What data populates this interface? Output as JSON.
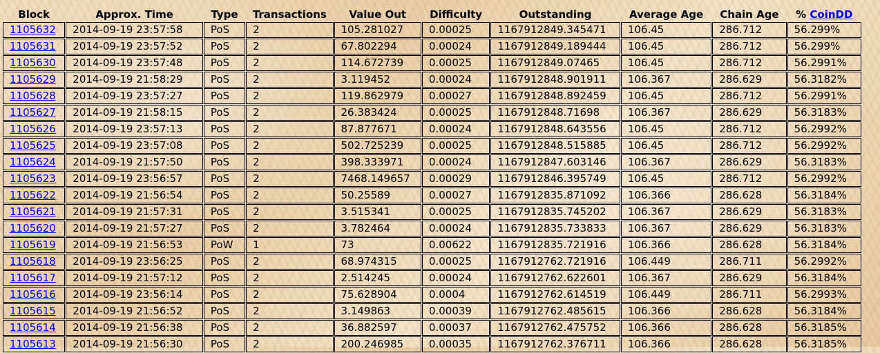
{
  "table": {
    "headers": {
      "block": "Block",
      "time": "Approx. Time",
      "type": "Type",
      "transactions": "Transactions",
      "value_out": "Value Out",
      "difficulty": "Difficulty",
      "outstanding": "Outstanding",
      "average_age": "Average Age",
      "chain_age": "Chain Age",
      "pct_prefix": "% ",
      "pct_link": "CoinDD"
    },
    "rows": [
      {
        "block": "1105632",
        "time": "2014-09-19 23:57:58",
        "type": "PoS",
        "tx": "2",
        "value": "105.281027",
        "difficulty": "0.00025",
        "outstanding": "1167912849.345471",
        "avg_age": "106.45",
        "chain_age": "286.712",
        "pct": "56.299%"
      },
      {
        "block": "1105631",
        "time": "2014-09-19 23:57:52",
        "type": "PoS",
        "tx": "2",
        "value": "67.802294",
        "difficulty": "0.00024",
        "outstanding": "1167912849.189444",
        "avg_age": "106.45",
        "chain_age": "286.712",
        "pct": "56.299%"
      },
      {
        "block": "1105630",
        "time": "2014-09-19 23:57:48",
        "type": "PoS",
        "tx": "2",
        "value": "114.672739",
        "difficulty": "0.00025",
        "outstanding": "1167912849.07465",
        "avg_age": "106.45",
        "chain_age": "286.712",
        "pct": "56.2991%"
      },
      {
        "block": "1105629",
        "time": "2014-09-19 21:58:29",
        "type": "PoS",
        "tx": "2",
        "value": "3.119452",
        "difficulty": "0.00024",
        "outstanding": "1167912848.901911",
        "avg_age": "106.367",
        "chain_age": "286.629",
        "pct": "56.3182%"
      },
      {
        "block": "1105628",
        "time": "2014-09-19 23:57:27",
        "type": "PoS",
        "tx": "2",
        "value": "119.862979",
        "difficulty": "0.00027",
        "outstanding": "1167912848.892459",
        "avg_age": "106.45",
        "chain_age": "286.712",
        "pct": "56.2991%"
      },
      {
        "block": "1105627",
        "time": "2014-09-19 21:58:15",
        "type": "PoS",
        "tx": "2",
        "value": "26.383424",
        "difficulty": "0.00025",
        "outstanding": "1167912848.71698",
        "avg_age": "106.367",
        "chain_age": "286.629",
        "pct": "56.3183%"
      },
      {
        "block": "1105626",
        "time": "2014-09-19 23:57:13",
        "type": "PoS",
        "tx": "2",
        "value": "87.877671",
        "difficulty": "0.00024",
        "outstanding": "1167912848.643556",
        "avg_age": "106.45",
        "chain_age": "286.712",
        "pct": "56.2992%"
      },
      {
        "block": "1105625",
        "time": "2014-09-19 23:57:08",
        "type": "PoS",
        "tx": "2",
        "value": "502.725239",
        "difficulty": "0.00025",
        "outstanding": "1167912848.515885",
        "avg_age": "106.45",
        "chain_age": "286.712",
        "pct": "56.2992%"
      },
      {
        "block": "1105624",
        "time": "2014-09-19 21:57:50",
        "type": "PoS",
        "tx": "2",
        "value": "398.333971",
        "difficulty": "0.00024",
        "outstanding": "1167912847.603146",
        "avg_age": "106.367",
        "chain_age": "286.629",
        "pct": "56.3183%"
      },
      {
        "block": "1105623",
        "time": "2014-09-19 23:56:57",
        "type": "PoS",
        "tx": "2",
        "value": "7468.149657",
        "difficulty": "0.00029",
        "outstanding": "1167912846.395749",
        "avg_age": "106.45",
        "chain_age": "286.712",
        "pct": "56.2992%"
      },
      {
        "block": "1105622",
        "time": "2014-09-19 21:56:54",
        "type": "PoS",
        "tx": "2",
        "value": "50.25589",
        "difficulty": "0.00027",
        "outstanding": "1167912835.871092",
        "avg_age": "106.366",
        "chain_age": "286.628",
        "pct": "56.3184%"
      },
      {
        "block": "1105621",
        "time": "2014-09-19 21:57:31",
        "type": "PoS",
        "tx": "2",
        "value": "3.515341",
        "difficulty": "0.00025",
        "outstanding": "1167912835.745202",
        "avg_age": "106.367",
        "chain_age": "286.629",
        "pct": "56.3183%"
      },
      {
        "block": "1105620",
        "time": "2014-09-19 21:57:27",
        "type": "PoS",
        "tx": "2",
        "value": "3.782464",
        "difficulty": "0.00024",
        "outstanding": "1167912835.733833",
        "avg_age": "106.367",
        "chain_age": "286.629",
        "pct": "56.3183%"
      },
      {
        "block": "1105619",
        "time": "2014-09-19 21:56:53",
        "type": "PoW",
        "tx": "1",
        "value": "73",
        "difficulty": "0.00622",
        "outstanding": "1167912835.721916",
        "avg_age": "106.366",
        "chain_age": "286.628",
        "pct": "56.3184%"
      },
      {
        "block": "1105618",
        "time": "2014-09-19 23:56:25",
        "type": "PoS",
        "tx": "2",
        "value": "68.974315",
        "difficulty": "0.00025",
        "outstanding": "1167912762.721916",
        "avg_age": "106.449",
        "chain_age": "286.711",
        "pct": "56.2992%"
      },
      {
        "block": "1105617",
        "time": "2014-09-19 21:57:12",
        "type": "PoS",
        "tx": "2",
        "value": "2.514245",
        "difficulty": "0.00024",
        "outstanding": "1167912762.622601",
        "avg_age": "106.367",
        "chain_age": "286.629",
        "pct": "56.3184%"
      },
      {
        "block": "1105616",
        "time": "2014-09-19 23:56:14",
        "type": "PoS",
        "tx": "2",
        "value": "75.628904",
        "difficulty": "0.0004",
        "outstanding": "1167912762.614519",
        "avg_age": "106.449",
        "chain_age": "286.711",
        "pct": "56.2993%"
      },
      {
        "block": "1105615",
        "time": "2014-09-19 21:56:52",
        "type": "PoS",
        "tx": "2",
        "value": "3.149863",
        "difficulty": "0.00039",
        "outstanding": "1167912762.485615",
        "avg_age": "106.366",
        "chain_age": "286.628",
        "pct": "56.3184%"
      },
      {
        "block": "1105614",
        "time": "2014-09-19 21:56:38",
        "type": "PoS",
        "tx": "2",
        "value": "36.882597",
        "difficulty": "0.00037",
        "outstanding": "1167912762.475752",
        "avg_age": "106.366",
        "chain_age": "286.628",
        "pct": "56.3185%"
      },
      {
        "block": "1105613",
        "time": "2014-09-19 21:56:30",
        "type": "PoS",
        "tx": "2",
        "value": "200.246985",
        "difficulty": "0.00035",
        "outstanding": "1167912762.376711",
        "avg_age": "106.366",
        "chain_age": "286.628",
        "pct": "56.3185%"
      }
    ]
  },
  "colors": {
    "link": "#0000ee",
    "border": "#000000",
    "background": "#efd8b8"
  }
}
